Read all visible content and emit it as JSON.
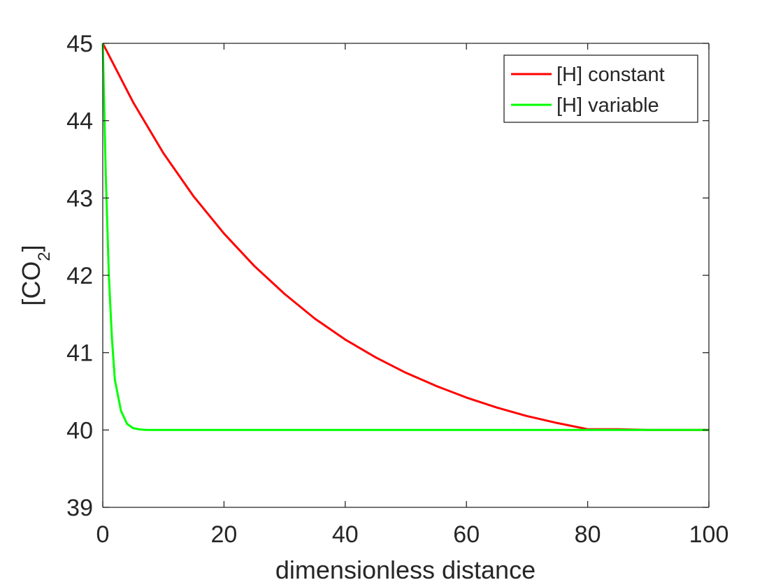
{
  "chart_data": {
    "type": "line",
    "title": "",
    "xlabel": "dimensionless distance",
    "ylabel": "[CO2]",
    "ylabel_parts": {
      "base": "[CO",
      "subscript": "2",
      "close": "]"
    },
    "xlim": [
      0,
      100
    ],
    "ylim": [
      39,
      45
    ],
    "xticks": [
      0,
      20,
      40,
      60,
      80,
      100
    ],
    "yticks": [
      39,
      40,
      41,
      42,
      43,
      44,
      45
    ],
    "grid": false,
    "legend_position": "top-right",
    "series": [
      {
        "name": "[H] constant",
        "color": "#ff0000",
        "x": [
          0,
          5,
          10,
          15,
          20,
          25,
          30,
          35,
          40,
          45,
          50,
          55,
          60,
          65,
          70,
          75,
          80,
          85,
          90,
          95,
          100
        ],
        "y": [
          45.0,
          44.24,
          43.58,
          43.02,
          42.54,
          42.12,
          41.76,
          41.44,
          41.17,
          40.94,
          40.74,
          40.57,
          40.42,
          40.29,
          40.18,
          40.09,
          40.01,
          40.01,
          40.0,
          40.0,
          40.0
        ]
      },
      {
        "name": "[H] variable",
        "color": "#00ff00",
        "x": [
          0,
          0.5,
          1,
          1.5,
          2,
          3,
          4,
          5,
          6,
          7,
          8,
          10,
          20,
          30,
          40,
          50,
          60,
          70,
          80,
          90,
          100
        ],
        "y": [
          45.0,
          43.3,
          42.0,
          41.2,
          40.65,
          40.25,
          40.08,
          40.025,
          40.008,
          40.002,
          40.0,
          40.0,
          40.0,
          40.0,
          40.0,
          40.0,
          40.0,
          40.0,
          40.0,
          40.0,
          40.0
        ]
      }
    ]
  }
}
